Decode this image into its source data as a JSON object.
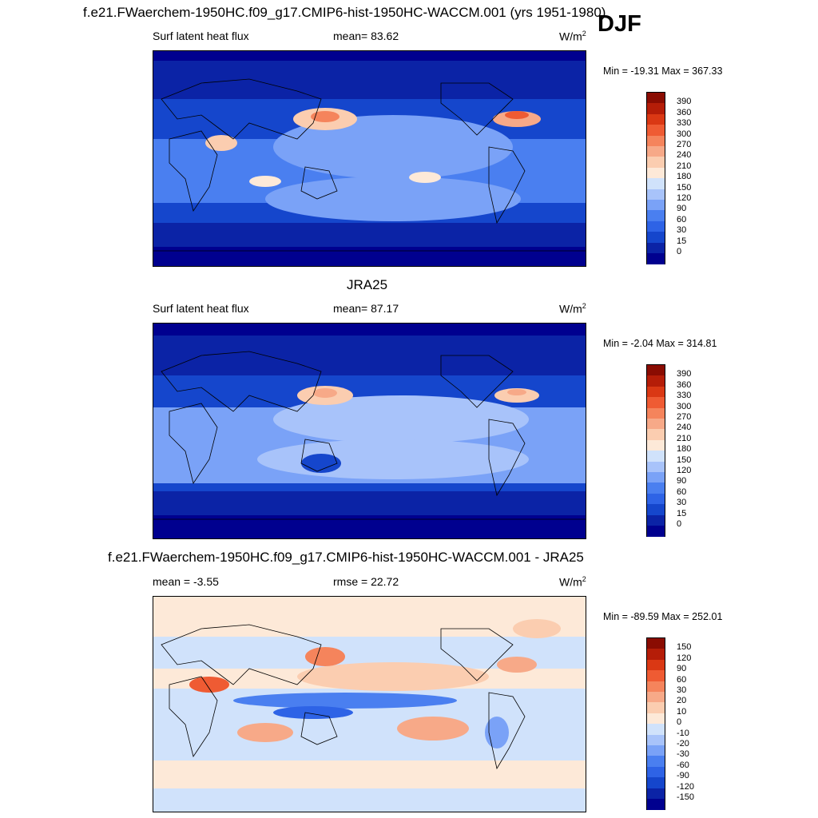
{
  "figure": {
    "season": "DJF",
    "units_base": "W/m",
    "units_exp": "2"
  },
  "panels": [
    {
      "title": "f.e21.FWaerchem-1950HC.f09_g17.CMIP6-hist-1950HC-WACCM.001 (yrs 1951-1980)",
      "left_label": "Surf latent heat flux",
      "center_label": "mean=  83.62",
      "minmax": "Min = -19.31 Max = 367.33"
    },
    {
      "title": "JRA25",
      "left_label": "Surf latent heat flux",
      "center_label": "mean=  87.17",
      "minmax": "Min =  -2.04 Max = 314.81"
    },
    {
      "title": "f.e21.FWaerchem-1950HC.f09_g17.CMIP6-hist-1950HC-WACCM.001 - JRA25",
      "left_label": "mean =  -3.55",
      "center_label": "rmse =  22.72",
      "minmax": "Min = -89.59 Max = 252.01"
    }
  ],
  "chart_data": [
    {
      "type": "heatmap",
      "title": "f.e21.FWaerchem-1950HC.f09_g17.CMIP6-hist-1950HC-WACCM.001 (yrs 1951-1980)",
      "variable": "Surf latent heat flux",
      "units": "W/m2",
      "mean": 83.62,
      "min": -19.31,
      "max": 367.33,
      "colorbar_levels": [
        0,
        15,
        30,
        60,
        90,
        120,
        150,
        180,
        210,
        240,
        270,
        300,
        330,
        360,
        390
      ],
      "colorbar_colors": [
        "#00008f",
        "#0b23a6",
        "#1546cc",
        "#2e63e6",
        "#4a7ff0",
        "#7aa2f7",
        "#a8c3fa",
        "#d0e2fb",
        "#fde9d8",
        "#fbcdb0",
        "#f7a988",
        "#f5845c",
        "#ef5b33",
        "#da3814",
        "#b51d08",
        "#8a0c02"
      ],
      "description": "Global map of surface latent heat flux; highs over Kuroshio and Gulf Stream"
    },
    {
      "type": "heatmap",
      "title": "JRA25",
      "variable": "Surf latent heat flux",
      "units": "W/m2",
      "mean": 87.17,
      "min": -2.04,
      "max": 314.81,
      "colorbar_levels": [
        0,
        15,
        30,
        60,
        90,
        120,
        150,
        180,
        210,
        240,
        270,
        300,
        330,
        360,
        390
      ],
      "colorbar_colors": [
        "#00008f",
        "#0b23a6",
        "#1546cc",
        "#2e63e6",
        "#4a7ff0",
        "#7aa2f7",
        "#a8c3fa",
        "#d0e2fb",
        "#fde9d8",
        "#fbcdb0",
        "#f7a988",
        "#f5845c",
        "#ef5b33",
        "#da3814",
        "#b51d08",
        "#8a0c02"
      ]
    },
    {
      "type": "heatmap",
      "title": "f.e21.FWaerchem-1950HC.f09_g17.CMIP6-hist-1950HC-WACCM.001 - JRA25",
      "units": "W/m2",
      "mean": -3.55,
      "rmse": 22.72,
      "min": -89.59,
      "max": 252.01,
      "colorbar_levels": [
        -150,
        -120,
        -90,
        -60,
        -30,
        -20,
        -10,
        0,
        10,
        20,
        30,
        60,
        90,
        120,
        150
      ],
      "colorbar_colors": [
        "#00008f",
        "#0b23a6",
        "#1546cc",
        "#2e63e6",
        "#4a7ff0",
        "#7aa2f7",
        "#a8c3fa",
        "#d0e2fb",
        "#fde9d8",
        "#fbcdb0",
        "#f7a988",
        "#f5845c",
        "#ef5b33",
        "#da3814",
        "#b51d08",
        "#8a0c02"
      ]
    }
  ]
}
